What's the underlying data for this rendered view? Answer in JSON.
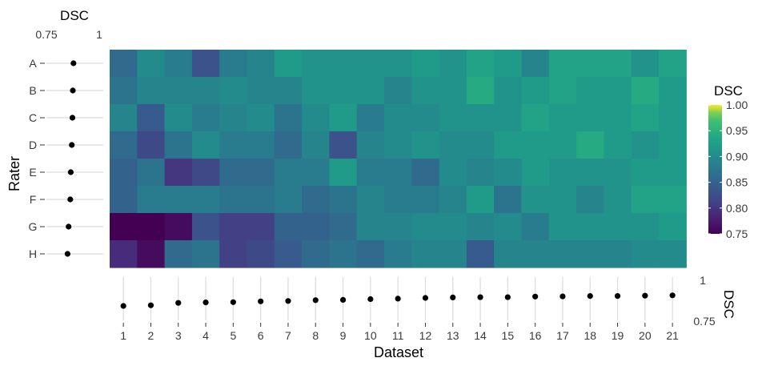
{
  "chart_data": {
    "type": "heatmap",
    "x_label": "Dataset",
    "y_label": "Rater",
    "datasets": [
      "1",
      "2",
      "3",
      "4",
      "5",
      "6",
      "7",
      "8",
      "9",
      "10",
      "11",
      "12",
      "13",
      "14",
      "15",
      "16",
      "17",
      "18",
      "19",
      "20",
      "21"
    ],
    "raters": [
      "A",
      "B",
      "C",
      "D",
      "E",
      "F",
      "G",
      "H"
    ],
    "value_label": "DSC",
    "color_scale": {
      "name": "viridis",
      "range": [
        0.75,
        1.0
      ],
      "ticks": [
        "1.00",
        "0.95",
        "0.90",
        "0.85",
        "0.80",
        "0.75"
      ]
    },
    "dsc": [
      [
        0.86,
        0.9,
        0.88,
        0.83,
        0.88,
        0.89,
        0.92,
        0.91,
        0.91,
        0.91,
        0.91,
        0.92,
        0.91,
        0.93,
        0.92,
        0.89,
        0.93,
        0.93,
        0.93,
        0.91,
        0.93
      ],
      [
        0.87,
        0.89,
        0.89,
        0.89,
        0.9,
        0.89,
        0.89,
        0.91,
        0.91,
        0.91,
        0.89,
        0.91,
        0.91,
        0.94,
        0.91,
        0.92,
        0.93,
        0.92,
        0.92,
        0.94,
        0.92
      ],
      [
        0.89,
        0.84,
        0.9,
        0.88,
        0.89,
        0.9,
        0.87,
        0.9,
        0.92,
        0.88,
        0.9,
        0.9,
        0.91,
        0.91,
        0.91,
        0.93,
        0.92,
        0.92,
        0.92,
        0.93,
        0.92
      ],
      [
        0.86,
        0.82,
        0.87,
        0.9,
        0.88,
        0.88,
        0.86,
        0.89,
        0.83,
        0.89,
        0.9,
        0.91,
        0.9,
        0.9,
        0.92,
        0.92,
        0.92,
        0.94,
        0.92,
        0.91,
        0.92
      ],
      [
        0.85,
        0.87,
        0.8,
        0.82,
        0.86,
        0.86,
        0.88,
        0.88,
        0.92,
        0.88,
        0.88,
        0.86,
        0.9,
        0.89,
        0.9,
        0.92,
        0.91,
        0.91,
        0.91,
        0.92,
        0.92
      ],
      [
        0.85,
        0.88,
        0.88,
        0.88,
        0.87,
        0.87,
        0.88,
        0.86,
        0.87,
        0.89,
        0.88,
        0.88,
        0.89,
        0.92,
        0.87,
        0.91,
        0.91,
        0.89,
        0.91,
        0.93,
        0.93
      ],
      [
        0.75,
        0.75,
        0.76,
        0.83,
        0.81,
        0.81,
        0.85,
        0.85,
        0.86,
        0.89,
        0.89,
        0.9,
        0.9,
        0.89,
        0.9,
        0.88,
        0.91,
        0.91,
        0.91,
        0.91,
        0.92
      ],
      [
        0.79,
        0.76,
        0.86,
        0.87,
        0.81,
        0.82,
        0.84,
        0.86,
        0.87,
        0.86,
        0.88,
        0.89,
        0.89,
        0.84,
        0.89,
        0.89,
        0.89,
        0.89,
        0.89,
        0.9,
        0.9
      ]
    ],
    "rater_summary": {
      "label": "DSC",
      "axis_ticks": [
        "0.75",
        "1"
      ],
      "values": [
        0.878,
        0.875,
        0.873,
        0.87,
        0.865,
        0.863,
        0.855,
        0.85
      ]
    },
    "dataset_summary": {
      "label": "DSC",
      "axis_ticks": [
        "1",
        "0.75"
      ],
      "values": [
        0.83,
        0.834,
        0.85,
        0.853,
        0.855,
        0.86,
        0.863,
        0.868,
        0.87,
        0.875,
        0.878,
        0.883,
        0.886,
        0.888,
        0.888,
        0.892,
        0.893,
        0.896,
        0.896,
        0.898,
        0.9
      ]
    },
    "grid": false
  }
}
